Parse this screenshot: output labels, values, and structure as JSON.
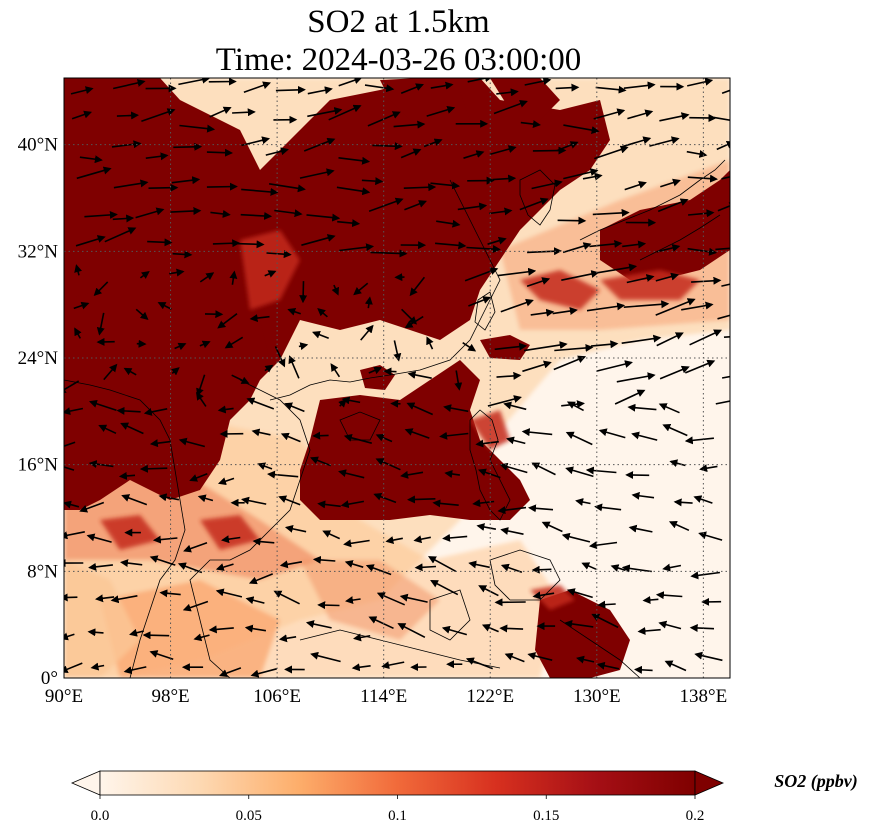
{
  "title": {
    "line1": "SO2 at 1.5km",
    "line2": "Time: 2024-03-26 03:00:00"
  },
  "map": {
    "projection": "PlateCarree",
    "lon_range": [
      90,
      140
    ],
    "lat_range": [
      0,
      45
    ],
    "gridlines": "dotted",
    "x_ticks": [
      {
        "value": 90,
        "label": "90°E"
      },
      {
        "value": 98,
        "label": "98°E"
      },
      {
        "value": 106,
        "label": "106°E"
      },
      {
        "value": 114,
        "label": "114°E"
      },
      {
        "value": 122,
        "label": "122°E"
      },
      {
        "value": 130,
        "label": "130°E"
      },
      {
        "value": 138,
        "label": "138°E"
      }
    ],
    "y_ticks": [
      {
        "value": 0,
        "label": "0°"
      },
      {
        "value": 8,
        "label": "8°N"
      },
      {
        "value": 16,
        "label": "16°N"
      },
      {
        "value": 24,
        "label": "24°N"
      },
      {
        "value": 32,
        "label": "32°N"
      },
      {
        "value": 40,
        "label": "40°N"
      }
    ],
    "field": "SO2 concentration shading with wind vectors and coastlines"
  },
  "colorbar": {
    "label": "SO2 (ppbv)",
    "range": [
      0.0,
      0.2
    ],
    "extend": "both",
    "colormap": [
      "#fff5eb",
      "#fdd9b3",
      "#fdae6b",
      "#f16a3a",
      "#d7301f",
      "#a50f15",
      "#7f0000"
    ],
    "ticks": [
      {
        "value": 0.0,
        "label": "0.0"
      },
      {
        "value": 0.05,
        "label": "0.05"
      },
      {
        "value": 0.1,
        "label": "0.1"
      },
      {
        "value": 0.15,
        "label": "0.15"
      },
      {
        "value": 0.2,
        "label": "0.2"
      }
    ]
  },
  "colors": {
    "high": "#7f0000",
    "mid": "#e34a33",
    "low": "#fdd9b3",
    "background": "#fff5eb"
  }
}
